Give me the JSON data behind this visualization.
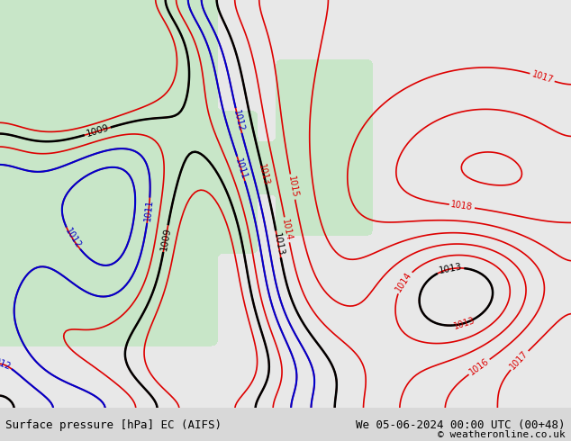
{
  "title_left": "Surface pressure [hPa] EC (AIFS)",
  "title_right": "We 05-06-2024 00:00 UTC (00+48)",
  "copyright": "© weatheronline.co.uk",
  "bg_color": "#d8d8d8",
  "land_color_main": "#c8e6c8",
  "land_color_alt": "#b8dbb8",
  "sea_color": "#e8e8e8",
  "contour_color_red": "#dd0000",
  "contour_color_blue": "#0000cc",
  "contour_color_black": "#000000",
  "contour_color_gray": "#888888",
  "bottom_bar_color": "#c8c8c8",
  "label_fontsize": 8,
  "title_fontsize": 9,
  "fig_width": 6.34,
  "fig_height": 4.9,
  "dpi": 100
}
